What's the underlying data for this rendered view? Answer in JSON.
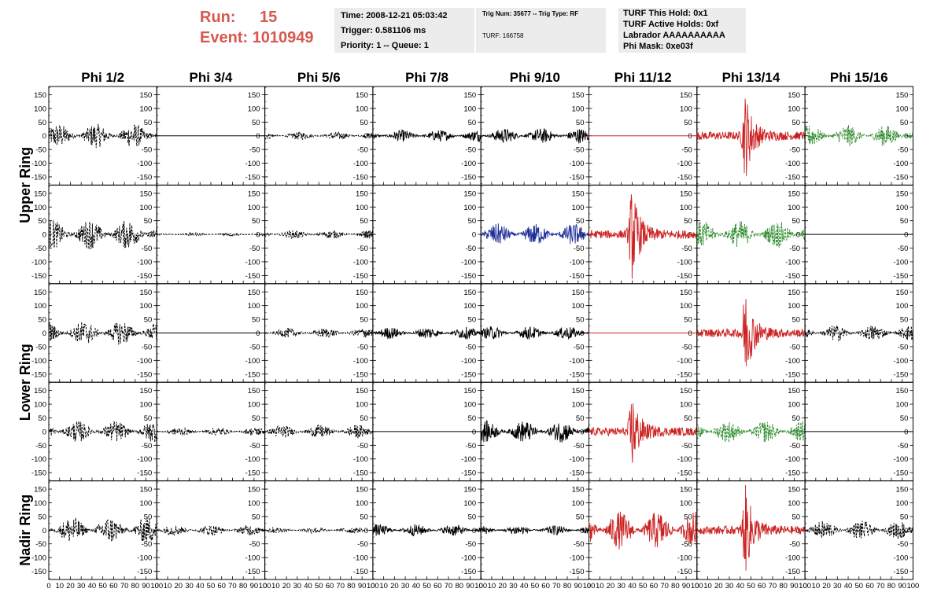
{
  "header": {
    "run_label": "Run:",
    "run_value": "15",
    "event_label": "Event:",
    "event_value": "1010949",
    "time": "Time: 2008-12-21 05:03:42",
    "trigger": "Trigger: 0.581106 ms",
    "priority": "Priority: 1 -- Queue: 1",
    "trig_num": "Trig Num: 35677 -- Trig Type: RF",
    "turf": "TURF: 166758",
    "turf_hold": "TURF This Hold: 0x1",
    "turf_active": "TURF Active Holds: 0xf",
    "labrador": "Labrador AAAAAAAAAA",
    "phi_mask": "Phi Mask: 0xe03f"
  },
  "colors": {
    "header_text": "#d6584f",
    "info_bg": "#ececec",
    "black": "#000000",
    "red": "#cc2222",
    "blue": "#1f2f99",
    "green": "#2a8a2a"
  },
  "chart_data": {
    "type": "line",
    "columns": [
      "Phi 1/2",
      "Phi 3/4",
      "Phi 5/6",
      "Phi 7/8",
      "Phi 9/10",
      "Phi 11/12",
      "Phi 13/14",
      "Phi 15/16"
    ],
    "row_groups": [
      "Upper Ring",
      "Lower Ring",
      "Nadir Ring"
    ],
    "rows": 5,
    "y_ticks": [
      150,
      100,
      50,
      0,
      -50,
      -100,
      -150
    ],
    "ylim": [
      -180,
      180
    ],
    "x_ticks": [
      0,
      10,
      20,
      30,
      40,
      50,
      60,
      70,
      80,
      90,
      100
    ],
    "xlim": [
      0,
      100
    ],
    "panels": [
      [
        {
          "color": "black",
          "style": "dashed",
          "amp": 45,
          "type": "noise"
        },
        {
          "color": "black",
          "style": "solid",
          "amp": 0,
          "type": "flat"
        },
        {
          "color": "black",
          "style": "dashed",
          "amp": 15,
          "type": "noise"
        },
        {
          "color": "black",
          "style": "solid",
          "amp": 22,
          "type": "noise"
        },
        {
          "color": "black",
          "style": "solid",
          "amp": 28,
          "type": "noise"
        },
        {
          "color": "red",
          "style": "solid",
          "amp": 0,
          "type": "flat"
        },
        {
          "color": "red",
          "style": "solid",
          "amp": 150,
          "type": "pulse",
          "center": 45
        },
        {
          "color": "green",
          "style": "dashed",
          "amp": 40,
          "type": "noise"
        }
      ],
      [
        {
          "color": "black",
          "style": "dashed",
          "amp": 55,
          "type": "noise"
        },
        {
          "color": "black",
          "style": "dashed",
          "amp": 6,
          "type": "noise"
        },
        {
          "color": "black",
          "style": "dashed",
          "amp": 15,
          "type": "noise"
        },
        {
          "color": "black",
          "style": "solid",
          "amp": 0,
          "type": "none"
        },
        {
          "color": "blue",
          "style": "solid",
          "amp": 40,
          "type": "noise"
        },
        {
          "color": "red",
          "style": "solid",
          "amp": 160,
          "type": "pulse",
          "center": 40
        },
        {
          "color": "green",
          "style": "dashed",
          "amp": 50,
          "type": "noise"
        },
        {
          "color": "black",
          "style": "solid",
          "amp": 0,
          "type": "flat"
        }
      ],
      [
        {
          "color": "black",
          "style": "dashed",
          "amp": 45,
          "type": "noise"
        },
        {
          "color": "black",
          "style": "solid",
          "amp": 0,
          "type": "flat"
        },
        {
          "color": "black",
          "style": "dashed",
          "amp": 18,
          "type": "noise"
        },
        {
          "color": "black",
          "style": "solid",
          "amp": 22,
          "type": "noise"
        },
        {
          "color": "black",
          "style": "solid",
          "amp": 25,
          "type": "noise"
        },
        {
          "color": "red",
          "style": "solid",
          "amp": 0,
          "type": "flat"
        },
        {
          "color": "red",
          "style": "solid",
          "amp": 160,
          "type": "pulse",
          "center": 45
        },
        {
          "color": "black",
          "style": "dashed",
          "amp": 30,
          "type": "noise"
        }
      ],
      [
        {
          "color": "black",
          "style": "dashed",
          "amp": 40,
          "type": "noise"
        },
        {
          "color": "black",
          "style": "dashed",
          "amp": 15,
          "type": "noise"
        },
        {
          "color": "black",
          "style": "dashed",
          "amp": 25,
          "type": "noise"
        },
        {
          "color": "black",
          "style": "solid",
          "amp": 0,
          "type": "flat"
        },
        {
          "color": "black",
          "style": "solid",
          "amp": 40,
          "type": "noise"
        },
        {
          "color": "red",
          "style": "solid",
          "amp": 130,
          "type": "pulse",
          "center": 40
        },
        {
          "color": "green",
          "style": "dashed",
          "amp": 40,
          "type": "noise"
        },
        {
          "color": "black",
          "style": "solid",
          "amp": 0,
          "type": "flat"
        }
      ],
      [
        {
          "color": "black",
          "style": "dashed",
          "amp": 50,
          "type": "noise"
        },
        {
          "color": "black",
          "style": "dashed",
          "amp": 20,
          "type": "noise"
        },
        {
          "color": "black",
          "style": "dashed",
          "amp": 12,
          "type": "noise"
        },
        {
          "color": "black",
          "style": "solid",
          "amp": 22,
          "type": "noise"
        },
        {
          "color": "black",
          "style": "solid",
          "amp": 18,
          "type": "noise"
        },
        {
          "color": "red",
          "style": "solid",
          "amp": 70,
          "type": "noise"
        },
        {
          "color": "red",
          "style": "solid",
          "amp": 150,
          "type": "pulse",
          "center": 45
        },
        {
          "color": "black",
          "style": "dashed",
          "amp": 35,
          "type": "noise"
        }
      ]
    ]
  }
}
